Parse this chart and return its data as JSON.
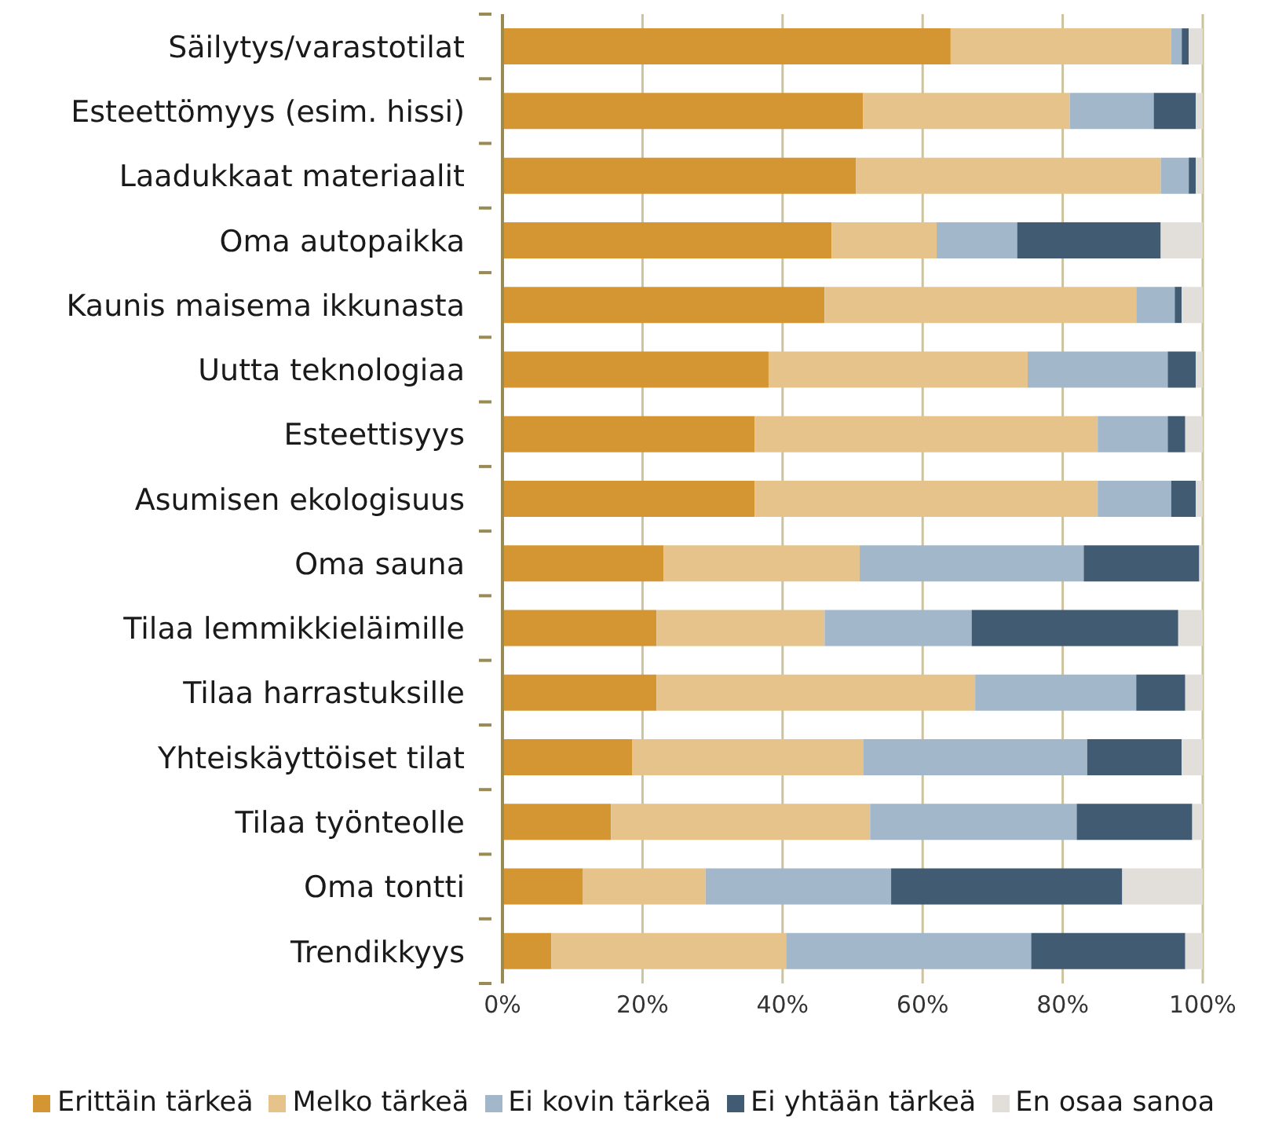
{
  "chart_data": {
    "type": "bar",
    "orientation": "horizontal",
    "stacked": true,
    "categories": [
      "Säilytys/varastotilat",
      "Esteettömyys (esim. hissi)",
      "Laadukkaat materiaalit",
      "Oma autopaikka",
      "Kaunis maisema ikkunasta",
      "Uutta teknologiaa",
      "Esteettisyys",
      "Asumisen ekologisuus",
      "Oma sauna",
      "Tilaa lemmikkieläimille",
      "Tilaa harrastuksille",
      "Yhteiskäyttöiset tilat",
      "Tilaa työnteolle",
      "Oma tontti",
      "Trendikkyys"
    ],
    "series": [
      {
        "name": "Erittäin tärkeä",
        "color": "#d49633",
        "values": [
          64,
          51.5,
          50.5,
          47,
          46,
          38,
          36,
          36,
          23,
          22,
          22,
          18.5,
          15.5,
          11.5,
          7
        ]
      },
      {
        "name": "Melko tärkeä",
        "color": "#e6c38a",
        "values": [
          31.5,
          29.5,
          43.5,
          15,
          44.5,
          37,
          49,
          49,
          28,
          24,
          45.5,
          33,
          37,
          17.5,
          33.5
        ]
      },
      {
        "name": "Ei kovin tärkeä",
        "color": "#a2b7ca",
        "values": [
          1.5,
          12,
          4,
          11.5,
          5.5,
          20,
          10,
          10.5,
          32,
          21,
          23,
          32,
          29.5,
          26.5,
          35
        ]
      },
      {
        "name": "Ei yhtään tärkeä",
        "color": "#405b72",
        "values": [
          1,
          6,
          1,
          20.5,
          1,
          4,
          2.5,
          3.5,
          16.5,
          29.5,
          7,
          13.5,
          16.5,
          33,
          22
        ]
      },
      {
        "name": "En osaa sanoa",
        "color": "#e2dfdb",
        "values": [
          2,
          1,
          1,
          6,
          3,
          1,
          2.5,
          1,
          0.5,
          3.5,
          2.5,
          3,
          1.5,
          11.5,
          2.5
        ]
      }
    ],
    "xlim": [
      0,
      100
    ],
    "xticks": [
      {
        "value": 0,
        "label": "0%"
      },
      {
        "value": 20,
        "label": "20%"
      },
      {
        "value": 40,
        "label": "40%"
      },
      {
        "value": 60,
        "label": "60%"
      },
      {
        "value": 80,
        "label": "80%"
      },
      {
        "value": 100,
        "label": "100%"
      }
    ],
    "grid": "x",
    "legend": "bottom"
  }
}
